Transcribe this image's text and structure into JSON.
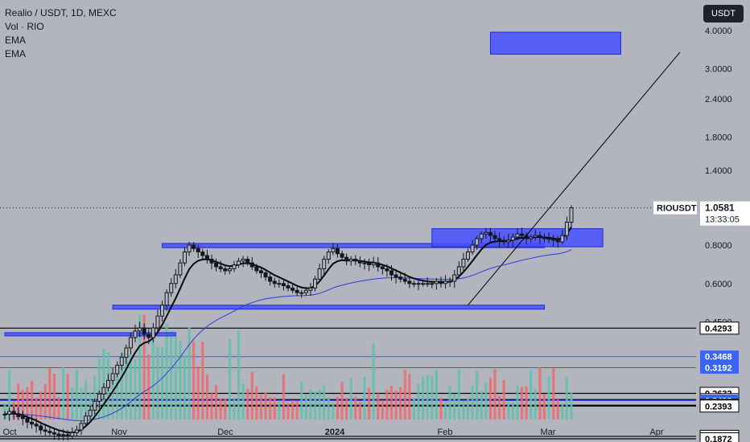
{
  "legend": {
    "symbol": "Realio / USDT, 1D, MEXC",
    "vol": "Vol · RIO",
    "ema1": "EMA",
    "ema2": "EMA"
  },
  "currency_button": "USDT",
  "colors": {
    "background": "#b2b5be",
    "zone_fill": "#4650ff",
    "zone_border": "#1f2bd4",
    "up": "#131722",
    "down": "#131722",
    "vol_up": "#5fbfae",
    "vol_down": "#ef6a70",
    "ema_fast": "#0b0b0b",
    "ema_slow": "#2f3bd8",
    "blue_tag": "#3b63f6"
  },
  "current": {
    "symbol": "RIOUSDT",
    "price": "1.0581",
    "countdown": "13:33:05"
  },
  "chart_data": {
    "type": "candlestick",
    "y_scale": "log",
    "ylim": [
      0.185,
      4.3
    ],
    "yticks": [
      "4.0000",
      "3.0000",
      "2.4000",
      "1.8000",
      "1.4000",
      "0.8000",
      "0.6000",
      "0.4500"
    ],
    "xticks": [
      "Oct",
      "Nov",
      "Dec",
      "2024",
      "Feb",
      "Mar",
      "Apr"
    ],
    "price_lines": [
      {
        "label": "0.4293",
        "value": 0.4293,
        "style": "black"
      },
      {
        "label": "0.3468",
        "value": 0.3468,
        "style": "blue"
      },
      {
        "label": "0.3192",
        "value": 0.3192,
        "style": "blue"
      },
      {
        "label": "0.2632",
        "value": 0.2632,
        "style": "black"
      },
      {
        "label": "0.2511",
        "value": 0.2511,
        "style": "black"
      },
      {
        "label": "0.2493",
        "value": 0.2493,
        "style": "blue"
      },
      {
        "label": "0.2408",
        "value": 0.2408,
        "style": "black"
      },
      {
        "label": "0.2393",
        "value": 0.2393,
        "style": "black"
      },
      {
        "label": "0.1907",
        "value": 0.1907,
        "style": "black"
      },
      {
        "label": "0.1872",
        "value": 0.1872,
        "style": "black"
      }
    ],
    "price_series": [
      0.225,
      0.23,
      0.226,
      0.221,
      0.218,
      0.212,
      0.209,
      0.206,
      0.2,
      0.198,
      0.196,
      0.194,
      0.192,
      0.193,
      0.191,
      0.196,
      0.2,
      0.21,
      0.222,
      0.232,
      0.248,
      0.262,
      0.275,
      0.29,
      0.305,
      0.325,
      0.345,
      0.37,
      0.4,
      0.42,
      0.43,
      0.41,
      0.4,
      0.43,
      0.47,
      0.51,
      0.56,
      0.6,
      0.64,
      0.7,
      0.76,
      0.8,
      0.78,
      0.76,
      0.74,
      0.72,
      0.7,
      0.68,
      0.67,
      0.66,
      0.67,
      0.69,
      0.71,
      0.72,
      0.7,
      0.68,
      0.66,
      0.65,
      0.63,
      0.61,
      0.6,
      0.6,
      0.59,
      0.58,
      0.57,
      0.56,
      0.56,
      0.57,
      0.58,
      0.62,
      0.67,
      0.72,
      0.76,
      0.78,
      0.75,
      0.73,
      0.71,
      0.72,
      0.71,
      0.7,
      0.7,
      0.69,
      0.7,
      0.68,
      0.67,
      0.66,
      0.64,
      0.63,
      0.62,
      0.61,
      0.6,
      0.6,
      0.6,
      0.6,
      0.6,
      0.6,
      0.61,
      0.6,
      0.61,
      0.61,
      0.64,
      0.68,
      0.72,
      0.76,
      0.8,
      0.84,
      0.87,
      0.88,
      0.86,
      0.84,
      0.83,
      0.82,
      0.83,
      0.85,
      0.87,
      0.86,
      0.84,
      0.85,
      0.86,
      0.85,
      0.84,
      0.84,
      0.83,
      0.82,
      0.86,
      0.95,
      1.0581
    ],
    "annotations": {
      "zones": [
        {
          "from": "day 24",
          "to": "day 120",
          "low": 0.495,
          "high": 0.51
        },
        {
          "from": "day 35",
          "to": "day 120",
          "low": 0.785,
          "high": 0.81
        },
        {
          "from": "day 0",
          "to": "day 38",
          "low": 0.405,
          "high": 0.415
        },
        {
          "from": "day 95",
          "to": "day 133",
          "low": 0.79,
          "high": 0.905
        },
        {
          "from": "day 108",
          "to": "day 137",
          "low": 3.35,
          "high": 3.95
        }
      ],
      "trendline": {
        "from_price": 0.51,
        "to_price": 3.4
      }
    }
  }
}
